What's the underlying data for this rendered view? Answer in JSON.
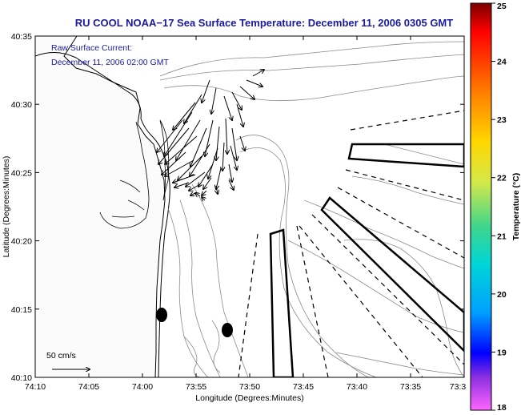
{
  "title": "RU COOL  NOAA−17  Sea Surface Temperature:  December 11, 2006 0305 GMT",
  "annotation": {
    "line1": "Raw Surface Current:",
    "line2": "December 11, 2006 02:00 GMT"
  },
  "scale": {
    "label": "50 cm/s"
  },
  "axes": {
    "xlabel": "Longitude (Degrees:Minutes)",
    "ylabel": "Latitude (Degrees:Minutes)",
    "x_ticks": [
      "74:10",
      "74:05",
      "74:00",
      "73:55",
      "73:50",
      "73:45",
      "73:40",
      "73:35",
      "73:3"
    ],
    "y_ticks": [
      "40:35",
      "40:30",
      "40:25",
      "40:20",
      "40:15",
      "40:10"
    ]
  },
  "colorbar": {
    "label": "Temperature (°C)",
    "min": 18,
    "max": 25,
    "ticks": [
      "25",
      "24",
      "23",
      "22",
      "21",
      "20",
      "19",
      "18"
    ]
  },
  "colors": {
    "title": "#1a1aa0",
    "annotation": "#1a1aa0",
    "land": "#fbfbfb",
    "bathymetry": "#8a8a8a"
  }
}
